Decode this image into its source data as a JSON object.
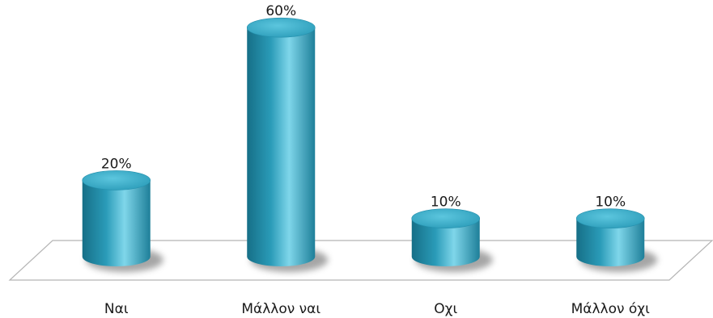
{
  "chart_data": {
    "type": "bar",
    "style": "3d-cylinder",
    "categories": [
      "Ναι",
      "Μάλλον ναι",
      "Οχι",
      "Μάλλον όχι"
    ],
    "values": [
      20,
      60,
      10,
      10
    ],
    "value_labels": [
      "20%",
      "60%",
      "10%",
      "10%"
    ],
    "unit": "%",
    "ylim": [
      0,
      60
    ],
    "grid": false,
    "legend": "none",
    "colors": {
      "bar_side": "#2a9bb8",
      "bar_highlight": "#7fd6ea",
      "bar_shadow": "#166f87",
      "bar_top": "#34a9c6",
      "floor_stroke": "#b5b5b5"
    }
  }
}
